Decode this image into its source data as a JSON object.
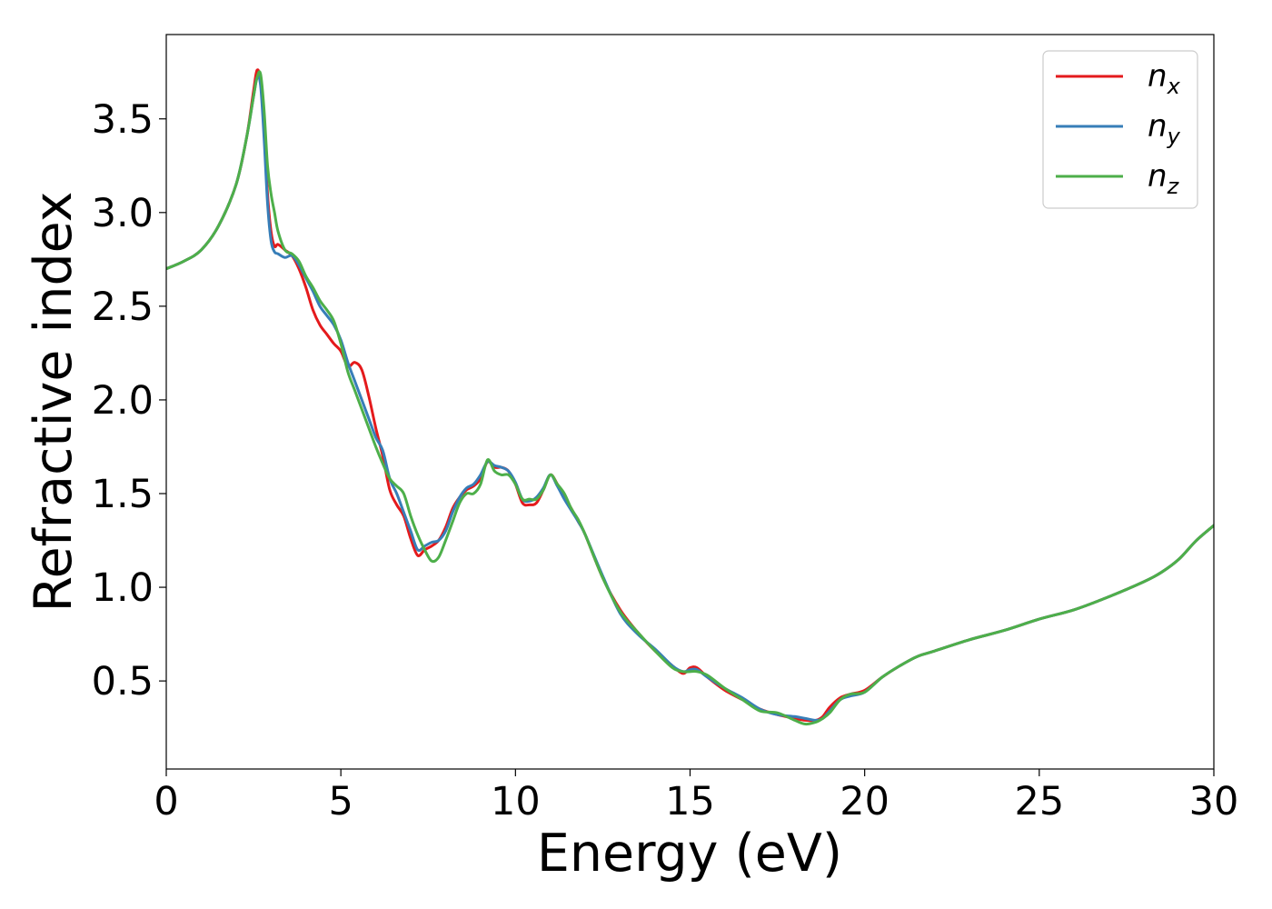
{
  "chart_data": {
    "type": "line",
    "xlabel": "Energy (eV)",
    "ylabel": "Refractive index",
    "xlim": [
      0,
      30
    ],
    "ylim": [
      0.03,
      3.95
    ],
    "xticks": [
      0,
      5,
      10,
      15,
      20,
      25,
      30
    ],
    "yticks": [
      0.5,
      1.0,
      1.5,
      2.0,
      2.5,
      3.0,
      3.5
    ],
    "xtick_labels": [
      "0",
      "5",
      "10",
      "15",
      "20",
      "25",
      "30"
    ],
    "ytick_labels": [
      "0.5",
      "1.0",
      "1.5",
      "2.0",
      "2.5",
      "3.0",
      "3.5"
    ],
    "grid": false,
    "legend_position": "top-right",
    "series": [
      {
        "name": "n",
        "sub": "x",
        "color": "#e41a1c",
        "x": [
          0,
          0.5,
          1.0,
          1.5,
          2.0,
          2.3,
          2.5,
          2.6,
          2.7,
          2.8,
          2.9,
          3.0,
          3.1,
          3.2,
          3.4,
          3.6,
          3.8,
          4.0,
          4.2,
          4.4,
          4.6,
          4.8,
          5.0,
          5.2,
          5.4,
          5.6,
          5.8,
          6.0,
          6.2,
          6.4,
          6.6,
          6.8,
          7.0,
          7.2,
          7.4,
          7.6,
          7.8,
          8.0,
          8.2,
          8.4,
          8.6,
          8.8,
          9.0,
          9.2,
          9.4,
          9.6,
          9.8,
          10.0,
          10.2,
          10.4,
          10.6,
          10.8,
          11.0,
          11.2,
          11.4,
          11.6,
          11.8,
          12.0,
          12.5,
          13.0,
          13.5,
          14.0,
          14.5,
          14.8,
          15.0,
          15.2,
          15.5,
          16.0,
          16.5,
          17.0,
          17.5,
          18.0,
          18.3,
          18.6,
          18.8,
          19.0,
          19.3,
          19.6,
          20.0,
          20.5,
          21.0,
          21.5,
          22.0,
          23.0,
          24.0,
          25.0,
          26.0,
          27.0,
          28.0,
          28.5,
          29.0,
          29.5,
          30.0
        ],
        "y": [
          2.7,
          2.74,
          2.8,
          2.93,
          3.15,
          3.4,
          3.65,
          3.76,
          3.7,
          3.45,
          3.1,
          2.9,
          2.82,
          2.83,
          2.8,
          2.77,
          2.7,
          2.6,
          2.48,
          2.4,
          2.35,
          2.3,
          2.26,
          2.18,
          2.2,
          2.16,
          2.02,
          1.85,
          1.7,
          1.52,
          1.44,
          1.38,
          1.26,
          1.17,
          1.2,
          1.22,
          1.25,
          1.32,
          1.42,
          1.48,
          1.52,
          1.54,
          1.58,
          1.67,
          1.64,
          1.64,
          1.62,
          1.55,
          1.45,
          1.44,
          1.45,
          1.52,
          1.6,
          1.55,
          1.48,
          1.42,
          1.35,
          1.28,
          1.05,
          0.88,
          0.76,
          0.66,
          0.58,
          0.54,
          0.57,
          0.57,
          0.52,
          0.45,
          0.4,
          0.35,
          0.32,
          0.3,
          0.29,
          0.29,
          0.31,
          0.36,
          0.41,
          0.43,
          0.45,
          0.52,
          0.58,
          0.63,
          0.66,
          0.72,
          0.77,
          0.83,
          0.88,
          0.95,
          1.03,
          1.08,
          1.15,
          1.25,
          1.33
        ]
      },
      {
        "name": "n",
        "sub": "y",
        "color": "#377eb8",
        "x": [
          0,
          0.5,
          1.0,
          1.5,
          2.0,
          2.3,
          2.5,
          2.6,
          2.7,
          2.8,
          2.9,
          3.0,
          3.1,
          3.2,
          3.4,
          3.6,
          3.8,
          4.0,
          4.2,
          4.4,
          4.6,
          4.8,
          5.0,
          5.2,
          5.4,
          5.6,
          5.8,
          6.0,
          6.2,
          6.4,
          6.6,
          6.8,
          7.0,
          7.2,
          7.4,
          7.6,
          7.8,
          8.0,
          8.2,
          8.4,
          8.6,
          8.8,
          9.0,
          9.2,
          9.4,
          9.6,
          9.8,
          10.0,
          10.2,
          10.4,
          10.6,
          10.8,
          11.0,
          11.2,
          11.4,
          11.6,
          11.8,
          12.0,
          12.5,
          13.0,
          13.5,
          14.0,
          14.5,
          14.8,
          15.0,
          15.2,
          15.5,
          16.0,
          16.5,
          17.0,
          17.5,
          18.0,
          18.3,
          18.6,
          18.8,
          19.0,
          19.3,
          19.6,
          20.0,
          20.5,
          21.0,
          21.5,
          22.0,
          23.0,
          24.0,
          25.0,
          26.0,
          27.0,
          28.0,
          28.5,
          29.0,
          29.5,
          30.0
        ],
        "y": [
          2.7,
          2.74,
          2.8,
          2.93,
          3.15,
          3.4,
          3.62,
          3.72,
          3.68,
          3.4,
          3.05,
          2.85,
          2.79,
          2.78,
          2.76,
          2.77,
          2.72,
          2.65,
          2.58,
          2.5,
          2.45,
          2.4,
          2.32,
          2.2,
          2.1,
          2.0,
          1.9,
          1.8,
          1.73,
          1.58,
          1.5,
          1.4,
          1.3,
          1.2,
          1.22,
          1.24,
          1.25,
          1.3,
          1.4,
          1.48,
          1.53,
          1.55,
          1.6,
          1.67,
          1.65,
          1.64,
          1.62,
          1.56,
          1.47,
          1.46,
          1.48,
          1.53,
          1.6,
          1.54,
          1.47,
          1.41,
          1.35,
          1.28,
          1.06,
          0.86,
          0.75,
          0.67,
          0.58,
          0.55,
          0.56,
          0.56,
          0.52,
          0.46,
          0.41,
          0.35,
          0.32,
          0.31,
          0.3,
          0.29,
          0.3,
          0.34,
          0.4,
          0.42,
          0.44,
          0.52,
          0.58,
          0.63,
          0.66,
          0.72,
          0.77,
          0.83,
          0.88,
          0.95,
          1.03,
          1.08,
          1.15,
          1.25,
          1.33
        ]
      },
      {
        "name": "n",
        "sub": "z",
        "color": "#4daf4a",
        "x": [
          0,
          0.5,
          1.0,
          1.5,
          2.0,
          2.3,
          2.5,
          2.6,
          2.7,
          2.8,
          2.9,
          3.0,
          3.1,
          3.2,
          3.4,
          3.6,
          3.8,
          4.0,
          4.2,
          4.4,
          4.6,
          4.8,
          5.0,
          5.2,
          5.4,
          5.6,
          5.8,
          6.0,
          6.2,
          6.4,
          6.6,
          6.8,
          7.0,
          7.2,
          7.4,
          7.6,
          7.8,
          8.0,
          8.2,
          8.4,
          8.6,
          8.8,
          9.0,
          9.2,
          9.4,
          9.6,
          9.8,
          10.0,
          10.2,
          10.4,
          10.6,
          10.8,
          11.0,
          11.2,
          11.4,
          11.6,
          11.8,
          12.0,
          12.5,
          13.0,
          13.5,
          14.0,
          14.5,
          14.8,
          15.0,
          15.2,
          15.5,
          16.0,
          16.5,
          17.0,
          17.5,
          18.0,
          18.3,
          18.6,
          18.8,
          19.0,
          19.3,
          19.6,
          20.0,
          20.5,
          21.0,
          21.5,
          22.0,
          23.0,
          24.0,
          25.0,
          26.0,
          27.0,
          28.0,
          28.5,
          29.0,
          29.5,
          30.0
        ],
        "y": [
          2.7,
          2.74,
          2.8,
          2.93,
          3.15,
          3.4,
          3.62,
          3.72,
          3.74,
          3.55,
          3.25,
          3.1,
          3.0,
          2.9,
          2.8,
          2.78,
          2.74,
          2.66,
          2.6,
          2.53,
          2.48,
          2.42,
          2.3,
          2.15,
          2.05,
          1.95,
          1.85,
          1.75,
          1.66,
          1.58,
          1.54,
          1.5,
          1.38,
          1.28,
          1.2,
          1.14,
          1.16,
          1.25,
          1.35,
          1.45,
          1.5,
          1.5,
          1.55,
          1.68,
          1.62,
          1.6,
          1.6,
          1.55,
          1.47,
          1.47,
          1.47,
          1.52,
          1.6,
          1.55,
          1.5,
          1.42,
          1.36,
          1.28,
          1.05,
          0.87,
          0.76,
          0.66,
          0.57,
          0.55,
          0.55,
          0.55,
          0.53,
          0.46,
          0.4,
          0.34,
          0.33,
          0.29,
          0.27,
          0.28,
          0.3,
          0.33,
          0.4,
          0.43,
          0.44,
          0.52,
          0.58,
          0.63,
          0.66,
          0.72,
          0.77,
          0.83,
          0.88,
          0.95,
          1.03,
          1.08,
          1.15,
          1.25,
          1.33
        ]
      }
    ]
  }
}
